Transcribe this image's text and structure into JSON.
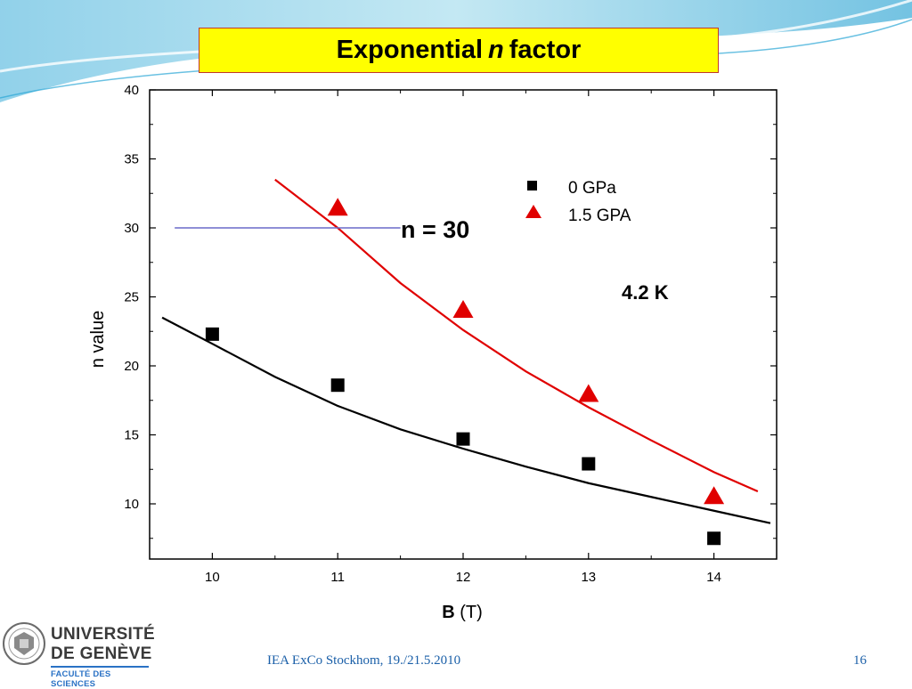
{
  "slide": {
    "title_prefix": "Exponential",
    "title_italic": "n",
    "title_suffix": "factor",
    "footer": "IEA ExCo Stockhom, 19./21.5.2010",
    "page_number": "16",
    "logo": {
      "line1": "UNIVERSITÉ",
      "line2": "DE GENÈVE",
      "line3": "FACULTÉ DES SCIENCES"
    },
    "colors": {
      "title_bg": "#ffff00",
      "title_border": "#c0392b",
      "series_0gpa": "#000000",
      "series_15gpa": "#e00000",
      "reference_line": "#6a6ac8",
      "footer_text": "#1a5fa8"
    }
  },
  "chart_data": {
    "type": "scatter",
    "xlabel_bold": "B",
    "xlabel_rest": "(T)",
    "ylabel": "n value",
    "xlim": [
      9.5,
      14.5
    ],
    "ylim": [
      6,
      40
    ],
    "xticks": [
      10,
      11,
      12,
      13,
      14
    ],
    "yticks": [
      10,
      15,
      20,
      25,
      30,
      35,
      40
    ],
    "legend_position": "top-right",
    "series": [
      {
        "name": "0 GPa",
        "marker": "square",
        "x": [
          10,
          11,
          12,
          13,
          14
        ],
        "y": [
          22.3,
          18.6,
          14.7,
          12.9,
          7.5
        ],
        "fit": {
          "x": [
            9.6,
            10,
            10.5,
            11,
            11.5,
            12,
            12.5,
            13,
            13.5,
            14,
            14.45
          ],
          "y": [
            23.5,
            21.6,
            19.2,
            17.1,
            15.4,
            14.0,
            12.7,
            11.5,
            10.5,
            9.5,
            8.6
          ]
        }
      },
      {
        "name": "1.5 GPA",
        "marker": "triangle",
        "x": [
          11,
          12,
          13,
          14
        ],
        "y": [
          31.4,
          24.0,
          17.9,
          10.5
        ],
        "fit": {
          "x": [
            10.5,
            11,
            11.5,
            12,
            12.5,
            13,
            13.5,
            14,
            14.35
          ],
          "y": [
            33.5,
            30.0,
            26.0,
            22.6,
            19.6,
            17.0,
            14.6,
            12.3,
            10.9
          ]
        }
      }
    ],
    "annotations": [
      {
        "text": "n = 30",
        "x": 11.5,
        "y": 30
      },
      {
        "text": "4.2 K",
        "x": 13.35,
        "y": 25.3
      }
    ],
    "reference_line": {
      "y": 30,
      "x_start": 9.7,
      "x_end": 11.5
    }
  }
}
